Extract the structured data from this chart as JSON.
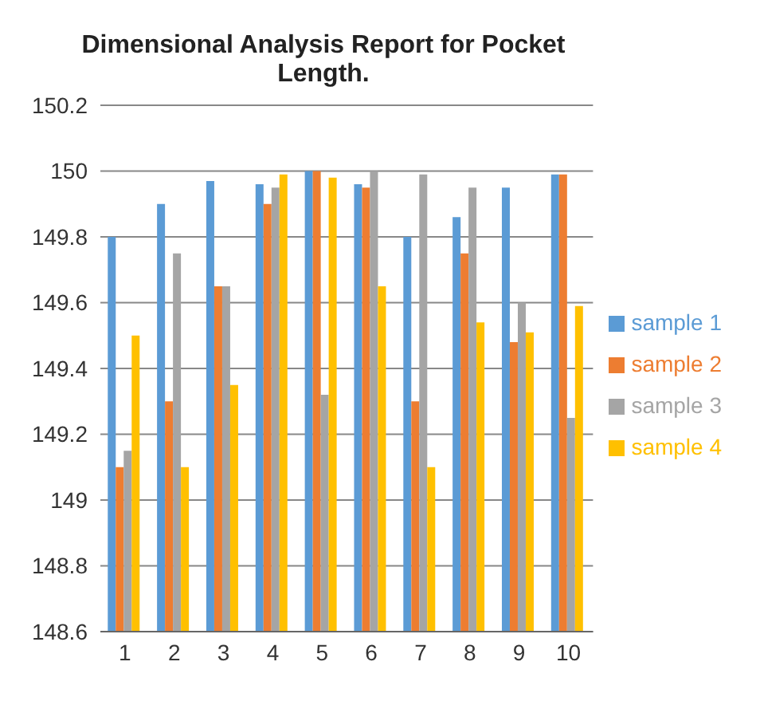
{
  "chart_data": {
    "type": "bar",
    "title": "Dimensional Analysis Report for Pocket Length.",
    "categories": [
      "1",
      "2",
      "3",
      "4",
      "5",
      "6",
      "7",
      "8",
      "9",
      "10"
    ],
    "series": [
      {
        "name": "sample 1",
        "color": "#5b9bd5",
        "values": [
          149.8,
          149.9,
          149.97,
          149.96,
          150,
          149.96,
          149.8,
          149.86,
          149.95,
          149.99
        ]
      },
      {
        "name": "sample 2",
        "color": "#ed7d31",
        "values": [
          149.1,
          149.3,
          149.65,
          149.9,
          150,
          149.95,
          149.3,
          149.75,
          149.48,
          149.99
        ]
      },
      {
        "name": "sample 3",
        "color": "#a5a5a5",
        "values": [
          149.15,
          149.75,
          149.65,
          149.95,
          149.32,
          150,
          149.99,
          149.95,
          149.6,
          149.25
        ]
      },
      {
        "name": "sample 4",
        "color": "#ffc000",
        "values": [
          149.5,
          149.1,
          149.35,
          149.99,
          149.98,
          149.65,
          149.1,
          149.54,
          149.51,
          149.59
        ]
      }
    ],
    "ylim": [
      148.6,
      150.2
    ],
    "yticks": [
      148.6,
      148.8,
      149,
      149.2,
      149.4,
      149.6,
      149.8,
      150,
      150.2
    ],
    "grid": "y",
    "legend": "right"
  }
}
